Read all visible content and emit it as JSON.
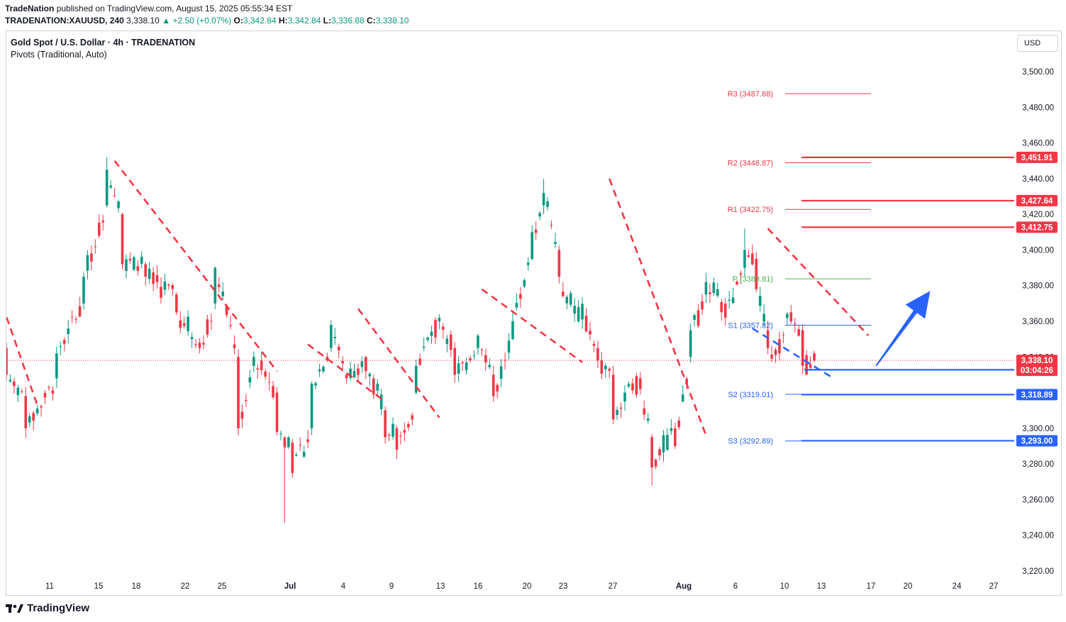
{
  "header": {
    "publisher": "TradeNation",
    "published_text": " published on TradingView.com, August 15, 2025 05:55:34 EST",
    "symbol": "TRADENATION:XAUUSD, 240",
    "last": "3,338.10",
    "change_arrow": "▲",
    "change": "+2.50 (+0.07%)",
    "o_label": "O:",
    "o": "3,342.84",
    "h_label": "H:",
    "h": "3,342.84",
    "l_label": "L:",
    "l": "3,336.88",
    "c_label": "C:",
    "c": "3,338.10"
  },
  "legend": {
    "title": "Gold Spot / U.S. Dollar · 4h · TRADENATION",
    "indicator": "Pivots (Traditional, Auto)"
  },
  "currency_button": "USD",
  "brand": "TradingView",
  "colors": {
    "up": "#089981",
    "down": "#f23645",
    "resistance": "#f23645",
    "support": "#2962ff",
    "pivot": "#4caf50",
    "arrow": "#2962ff"
  },
  "chart_data": {
    "type": "candlestick",
    "yaxis": {
      "ticks": [
        3220,
        3240,
        3260,
        3280,
        3300,
        3320,
        3340,
        3360,
        3380,
        3400,
        3420,
        3440,
        3460,
        3480,
        3500
      ],
      "tick_labels": [
        "3,220.00",
        "3,240.00",
        "3,260.00",
        "3,280.00",
        "3,300.00",
        "3,320.00",
        "3,340.00",
        "3,360.00",
        "3,380.00",
        "3,400.00",
        "3,420.00",
        "3,440.00",
        "3,460.00",
        "3,480.00",
        "3,500.00"
      ]
    },
    "xaxis": {
      "ticks": [
        {
          "label": "11",
          "bold": false
        },
        {
          "label": "15",
          "bold": false
        },
        {
          "label": "18",
          "bold": false
        },
        {
          "label": "22",
          "bold": false
        },
        {
          "label": "25",
          "bold": false
        },
        {
          "label": "Jul",
          "bold": true
        },
        {
          "label": "4",
          "bold": false
        },
        {
          "label": "9",
          "bold": false
        },
        {
          "label": "13",
          "bold": false
        },
        {
          "label": "16",
          "bold": false
        },
        {
          "label": "20",
          "bold": false
        },
        {
          "label": "23",
          "bold": false
        },
        {
          "label": "27",
          "bold": false
        },
        {
          "label": "Aug",
          "bold": true
        },
        {
          "label": "6",
          "bold": false
        },
        {
          "label": "10",
          "bold": false
        },
        {
          "label": "13",
          "bold": false
        },
        {
          "label": "17",
          "bold": false
        },
        {
          "label": "20",
          "bold": false
        },
        {
          "label": "24",
          "bold": false
        },
        {
          "label": "27",
          "bold": false
        }
      ]
    },
    "anchors": [
      {
        "i": 0,
        "o": 3345,
        "c": 3330
      },
      {
        "i": 5,
        "o": 3318,
        "c": 3300
      },
      {
        "i": 13,
        "o": 3328,
        "c": 3342
      },
      {
        "i": 20,
        "o": 3370,
        "c": 3385
      },
      {
        "i": 26,
        "o": 3425,
        "c": 3445
      },
      {
        "i": 30,
        "o": 3420,
        "c": 3392
      },
      {
        "i": 36,
        "o": 3392,
        "c": 3385
      },
      {
        "i": 44,
        "o": 3375,
        "c": 3365
      },
      {
        "i": 50,
        "o": 3348,
        "c": 3345
      },
      {
        "i": 54,
        "o": 3370,
        "c": 3390
      },
      {
        "i": 60,
        "o": 3340,
        "c": 3300
      },
      {
        "i": 64,
        "o": 3335,
        "c": 3340
      },
      {
        "i": 70,
        "o": 3320,
        "c": 3298
      },
      {
        "i": 74,
        "o": 3292,
        "c": 3275
      },
      {
        "i": 79,
        "o": 3300,
        "c": 3325
      },
      {
        "i": 84,
        "o": 3345,
        "c": 3358
      },
      {
        "i": 88,
        "o": 3330,
        "c": 3328
      },
      {
        "i": 93,
        "o": 3340,
        "c": 3332
      },
      {
        "i": 98,
        "o": 3310,
        "c": 3295
      },
      {
        "i": 101,
        "o": 3300,
        "c": 3288
      },
      {
        "i": 106,
        "o": 3320,
        "c": 3335
      },
      {
        "i": 112,
        "o": 3360,
        "c": 3362
      },
      {
        "i": 116,
        "o": 3345,
        "c": 3330
      },
      {
        "i": 122,
        "o": 3345,
        "c": 3352
      },
      {
        "i": 126,
        "o": 3330,
        "c": 3318
      },
      {
        "i": 131,
        "o": 3350,
        "c": 3360
      },
      {
        "i": 136,
        "o": 3395,
        "c": 3410
      },
      {
        "i": 139,
        "o": 3425,
        "c": 3432
      },
      {
        "i": 143,
        "o": 3400,
        "c": 3385
      },
      {
        "i": 148,
        "o": 3360,
        "c": 3368
      },
      {
        "i": 153,
        "o": 3345,
        "c": 3338
      },
      {
        "i": 157,
        "o": 3330,
        "c": 3305
      },
      {
        "i": 160,
        "o": 3315,
        "c": 3320
      },
      {
        "i": 164,
        "o": 3328,
        "c": 3322
      },
      {
        "i": 167,
        "o": 3295,
        "c": 3278
      },
      {
        "i": 173,
        "o": 3300,
        "c": 3290
      },
      {
        "i": 177,
        "o": 3340,
        "c": 3355
      },
      {
        "i": 181,
        "o": 3375,
        "c": 3382
      },
      {
        "i": 186,
        "o": 3370,
        "c": 3362
      },
      {
        "i": 191,
        "o": 3390,
        "c": 3400
      },
      {
        "i": 194,
        "o": 3395,
        "c": 3378
      },
      {
        "i": 197,
        "o": 3355,
        "c": 3345
      },
      {
        "i": 200,
        "o": 3350,
        "c": 3342
      },
      {
        "i": 203,
        "o": 3365,
        "c": 3360
      },
      {
        "i": 206,
        "o": 3355,
        "c": 3335
      },
      {
        "i": 209,
        "o": 3342,
        "c": 3338
      }
    ],
    "extremes": [
      {
        "i": 26,
        "h": 3452
      },
      {
        "i": 72,
        "l": 3247
      },
      {
        "i": 139,
        "h": 3440
      },
      {
        "i": 167,
        "l": 3268
      },
      {
        "i": 191,
        "h": 3412
      },
      {
        "i": 207,
        "l": 3332
      }
    ],
    "pivots": [
      {
        "name": "R3",
        "label": "R3 (3487.68)",
        "value": 3487.68,
        "kind": "resistance"
      },
      {
        "name": "R2",
        "label": "R2 (3448.87)",
        "value": 3448.87,
        "kind": "resistance"
      },
      {
        "name": "R1",
        "label": "R1 (3422.75)",
        "value": 3422.75,
        "kind": "resistance"
      },
      {
        "name": "P",
        "label": "P (3383.81)",
        "value": 3383.81,
        "kind": "pivot"
      },
      {
        "name": "S1",
        "label": "S1 (3357.82)",
        "value": 3357.82,
        "kind": "support"
      },
      {
        "name": "S2",
        "label": "S2 (3319.01)",
        "value": 3319.01,
        "kind": "support"
      },
      {
        "name": "S3",
        "label": "S3 (3292.89)",
        "value": 3292.89,
        "kind": "support"
      }
    ],
    "levels": [
      {
        "value": 3451.91,
        "label": "3,451.91",
        "kind": "resistance"
      },
      {
        "value": 3427.64,
        "label": "3,427.64",
        "kind": "resistance"
      },
      {
        "value": 3412.75,
        "label": "3,412.75",
        "kind": "resistance"
      },
      {
        "value": 3332.81,
        "label": "3,332.81",
        "kind": "support"
      },
      {
        "value": 3318.89,
        "label": "3,318.89",
        "kind": "support"
      },
      {
        "value": 3293.0,
        "label": "3,293.00",
        "kind": "support"
      }
    ],
    "current_price": {
      "value": 3338.1,
      "label": "3,338.10",
      "countdown": "03:04:26"
    },
    "trendlines": [
      {
        "kind": "resistance",
        "from": {
          "i": -2,
          "p": 3375
        },
        "to": {
          "i": 8,
          "p": 3313
        }
      },
      {
        "kind": "resistance",
        "from": {
          "i": 28,
          "p": 3450
        },
        "to": {
          "i": 70,
          "p": 3332
        }
      },
      {
        "kind": "resistance",
        "from": {
          "i": 78,
          "p": 3347
        },
        "to": {
          "i": 98,
          "p": 3315
        }
      },
      {
        "kind": "resistance",
        "from": {
          "i": 91,
          "p": 3367
        },
        "to": {
          "i": 112,
          "p": 3306
        }
      },
      {
        "kind": "resistance",
        "from": {
          "i": 123,
          "p": 3378
        },
        "to": {
          "i": 149,
          "p": 3337
        }
      },
      {
        "kind": "resistance",
        "from": {
          "i": 156,
          "p": 3440
        },
        "to": {
          "i": 181,
          "p": 3296
        }
      },
      {
        "kind": "resistance",
        "from": {
          "i": 197,
          "p": 3412
        },
        "to": {
          "i": 223,
          "p": 3352
        }
      },
      {
        "kind": "support",
        "from": {
          "i": 193,
          "p": 3356
        },
        "to": {
          "i": 214,
          "p": 3328
        }
      }
    ],
    "arrow": {
      "from": {
        "i": 225,
        "p": 3335
      },
      "to": {
        "i": 239,
        "p": 3377
      }
    }
  }
}
